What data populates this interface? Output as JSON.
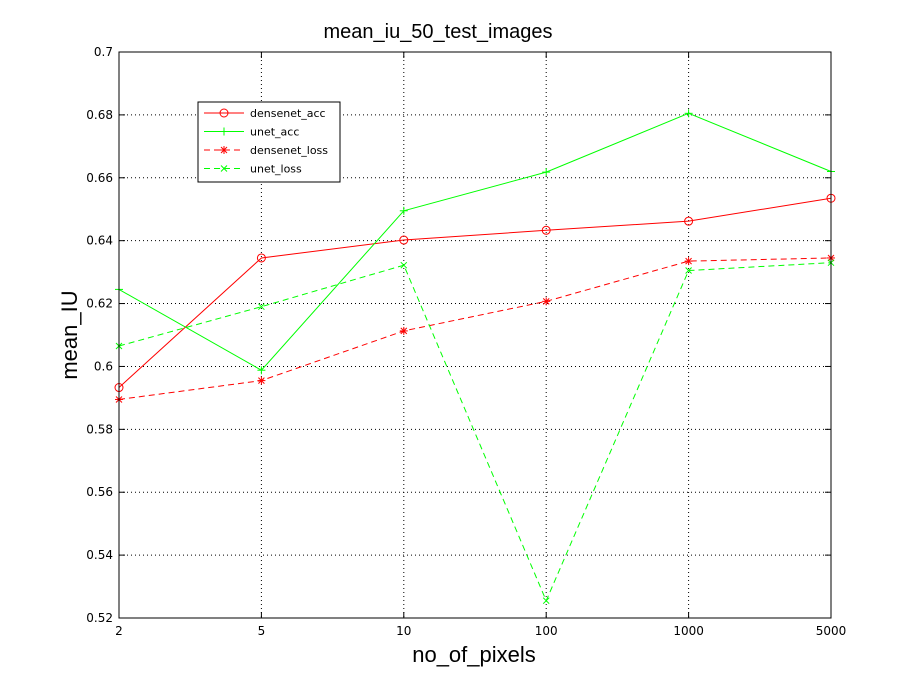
{
  "chart_data": {
    "type": "line",
    "title": "mean_iu_50_test_images",
    "xlabel": "no_of_pixels",
    "ylabel": "mean_IU",
    "categories": [
      "2",
      "5",
      "10",
      "100",
      "1000",
      "5000"
    ],
    "ylim": [
      0.52,
      0.7
    ],
    "yticks": [
      "0.52",
      "0.54",
      "0.56",
      "0.58",
      "0.6",
      "0.62",
      "0.64",
      "0.66",
      "0.68",
      "0.7"
    ],
    "grid": true,
    "legend_position": "top-left",
    "series": [
      {
        "name": "densenet_acc",
        "color": "#ff0000",
        "dash": "solid",
        "marker": "circle",
        "values": [
          0.5933,
          0.6345,
          0.6402,
          0.6433,
          0.6462,
          0.6535
        ]
      },
      {
        "name": "unet_acc",
        "color": "#00ff00",
        "dash": "solid",
        "marker": "plus",
        "values": [
          0.6245,
          0.5988,
          0.6495,
          0.6618,
          0.6805,
          0.662
        ]
      },
      {
        "name": "densenet_loss",
        "color": "#ff0000",
        "dash": "dashed",
        "marker": "asterisk",
        "values": [
          0.5895,
          0.5955,
          0.6113,
          0.6207,
          0.6335,
          0.6345
        ]
      },
      {
        "name": "unet_loss",
        "color": "#00ff00",
        "dash": "dashed",
        "marker": "x",
        "values": [
          0.6065,
          0.619,
          0.6322,
          0.5255,
          0.6305,
          0.633
        ]
      }
    ]
  }
}
